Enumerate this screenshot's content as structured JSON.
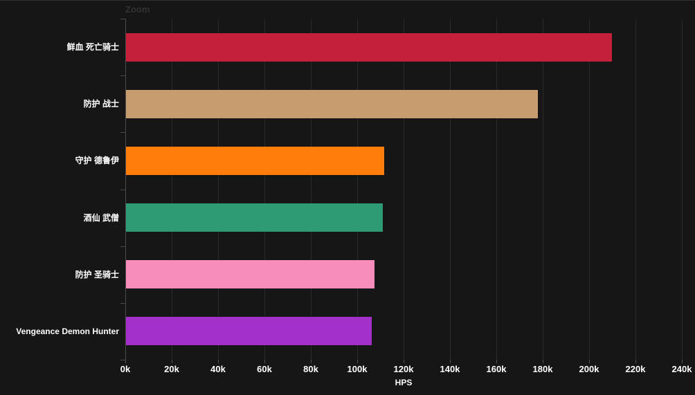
{
  "header": {
    "zoom_label": "Zoom"
  },
  "chart_data": {
    "type": "bar",
    "orientation": "horizontal",
    "title": "",
    "xlabel": "HPS",
    "ylabel": "",
    "categories": [
      "鲜血 死亡骑士",
      "防护 战士",
      "守护 德鲁伊",
      "酒仙 武僧",
      "防护 圣骑士",
      "Vengeance Demon Hunter"
    ],
    "values": [
      209700,
      177600,
      111300,
      110600,
      107100,
      106000
    ],
    "bar_colors": [
      "#C41F3B",
      "#C79C6E",
      "#FF7D0A",
      "#2E9B75",
      "#F58CBA",
      "#A330C9"
    ],
    "x_ticks": [
      "0k",
      "20k",
      "40k",
      "60k",
      "80k",
      "100k",
      "120k",
      "140k",
      "160k",
      "180k",
      "200k",
      "220k",
      "240k"
    ],
    "xlim": [
      0,
      240000
    ],
    "tick_interval": 20000,
    "grid": true,
    "legend": "none",
    "colors": {
      "background": "#161616",
      "gridline": "#2a2a2a",
      "axis_line": "#4a4a4a",
      "text": "#ffffff",
      "zoom_text": "#333333"
    }
  }
}
